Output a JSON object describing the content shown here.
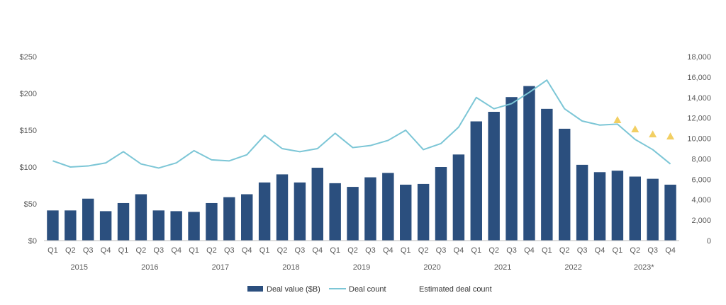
{
  "chart_data": {
    "type": "bar",
    "title": "",
    "xlabel": "",
    "ylabel": "",
    "categories": [
      "Q1",
      "Q2",
      "Q3",
      "Q4",
      "Q1",
      "Q2",
      "Q3",
      "Q4",
      "Q1",
      "Q2",
      "Q3",
      "Q4",
      "Q1",
      "Q2",
      "Q3",
      "Q4",
      "Q1",
      "Q2",
      "Q3",
      "Q4",
      "Q1",
      "Q2",
      "Q3",
      "Q4",
      "Q1",
      "Q2",
      "Q3",
      "Q4",
      "Q1",
      "Q2",
      "Q3",
      "Q4",
      "Q1",
      "Q2",
      "Q3",
      "Q4"
    ],
    "years": [
      "2015",
      "2016",
      "2017",
      "2018",
      "2019",
      "2020",
      "2021",
      "2022",
      "2023*"
    ],
    "ylim_left": [
      0,
      250
    ],
    "yticks_left": [
      "$0",
      "$50",
      "$100",
      "$150",
      "$200",
      "$250"
    ],
    "ylim_right": [
      0,
      18000
    ],
    "yticks_right": [
      "0",
      "2,000",
      "4,000",
      "6,000",
      "8,000",
      "10,000",
      "12,000",
      "14,000",
      "16,000",
      "18,000"
    ],
    "grid": false,
    "legend_position": "bottom",
    "colors": {
      "deal_value": "#2b4f7e",
      "deal_count": "#7cc6d6",
      "estimated": "#f2cf63",
      "text": "#5a5a5a"
    },
    "series": [
      {
        "name": "Deal value ($B)",
        "type": "bar",
        "axis": "left",
        "values": [
          41,
          41,
          57,
          40,
          51,
          63,
          41,
          40,
          39,
          51,
          59,
          63,
          79,
          90,
          79,
          99,
          78,
          73,
          86,
          92,
          76,
          77,
          100,
          117,
          162,
          175,
          195,
          210,
          179,
          152,
          103,
          93,
          95,
          87,
          84,
          76
        ]
      },
      {
        "name": "Deal count",
        "type": "line",
        "axis": "right",
        "values": [
          7800,
          7200,
          7300,
          7600,
          8700,
          7500,
          7100,
          7600,
          8800,
          7900,
          7800,
          8400,
          10300,
          9000,
          8700,
          9000,
          10500,
          9100,
          9300,
          9800,
          10800,
          8900,
          9500,
          11100,
          14000,
          12900,
          13400,
          14500,
          15700,
          12900,
          11700,
          11300,
          11400,
          9900,
          8900,
          7500
        ]
      },
      {
        "name": "Estimated deal count",
        "type": "marker",
        "axis": "right",
        "values": [
          null,
          null,
          null,
          null,
          null,
          null,
          null,
          null,
          null,
          null,
          null,
          null,
          null,
          null,
          null,
          null,
          null,
          null,
          null,
          null,
          null,
          null,
          null,
          null,
          null,
          null,
          null,
          null,
          null,
          null,
          null,
          null,
          11800,
          10900,
          10400,
          10200
        ]
      }
    ]
  }
}
